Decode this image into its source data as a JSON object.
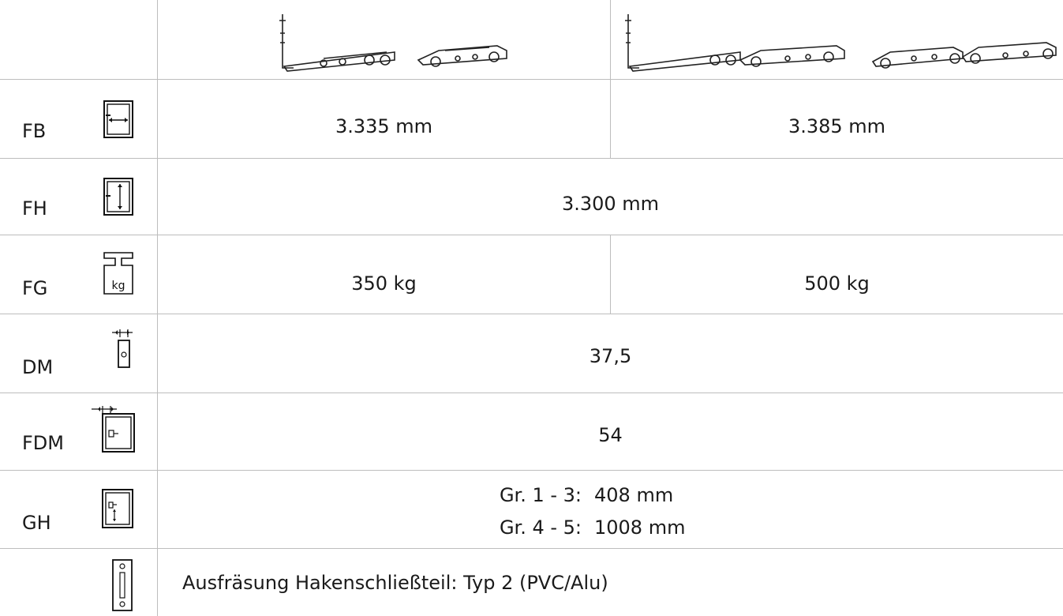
{
  "header": {
    "images": [
      {
        "name": "hardware-set-single-carriage"
      },
      {
        "name": "hardware-set-double-carriage"
      }
    ]
  },
  "rows": [
    {
      "label": "FB",
      "icon": "sash-width-icon",
      "values": [
        "3.335 mm",
        "3.385 mm"
      ]
    },
    {
      "label": "FH",
      "icon": "sash-height-icon",
      "value": "3.300 mm"
    },
    {
      "label": "FG",
      "icon": "sash-weight-icon",
      "icon_text": "kg",
      "values": [
        "350 kg",
        "500 kg"
      ]
    },
    {
      "label": "DM",
      "icon": "backset-icon",
      "value": "37,5"
    },
    {
      "label": "FDM",
      "icon": "sash-backset-icon",
      "value": "54"
    },
    {
      "label": "GH",
      "icon": "handle-height-icon",
      "lines": [
        {
          "range": "Gr. 1 - 3:",
          "value": "408 mm"
        },
        {
          "range": "Gr. 4 - 5:",
          "value": "1008 mm"
        }
      ]
    },
    {
      "label": "",
      "icon": "keeper-cutout-icon",
      "value": "Ausfräsung Hakenschließteil: Typ 2 (PVC/Alu)"
    }
  ],
  "colors": {
    "grid": "#bdbdbd",
    "text": "#1a1a1a",
    "header_bg": "#ffffff"
  }
}
